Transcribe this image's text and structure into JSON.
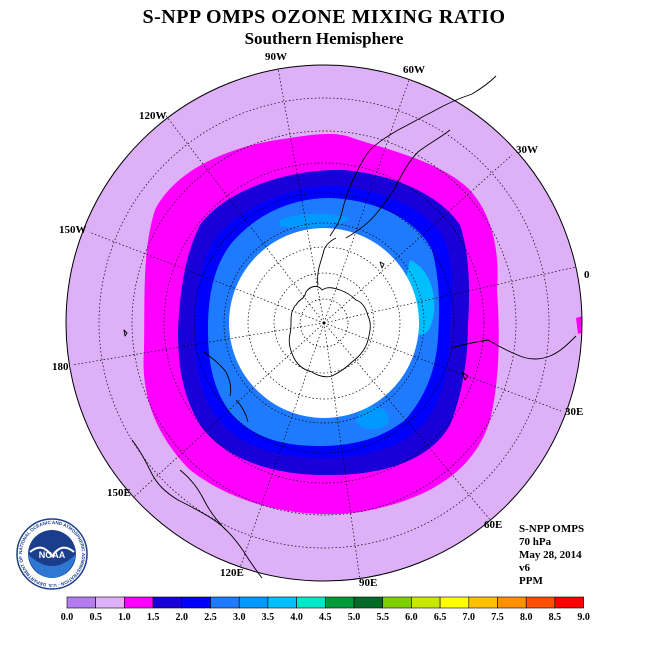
{
  "title": "S-NPP OMPS OZONE MIXING RATIO",
  "subtitle": "Southern Hemisphere",
  "longitude_labels": [
    "90W",
    "60W",
    "30W",
    "0",
    "30E",
    "60E",
    "90E",
    "120E",
    "150E",
    "180",
    "150W",
    "120W"
  ],
  "info": {
    "instrument": "S-NPP OMPS",
    "level": "70 hPa",
    "date": "May 28, 2014",
    "version": "v6",
    "units": "PPM"
  },
  "colorbar": {
    "ticks": [
      "0.0",
      "0.5",
      "1.0",
      "1.5",
      "2.0",
      "2.5",
      "3.0",
      "3.5",
      "4.0",
      "4.5",
      "5.0",
      "5.5",
      "6.0",
      "6.5",
      "7.0",
      "7.5",
      "8.0",
      "8.5",
      "9.0"
    ],
    "colors": [
      "#b57bf0",
      "#deb0f8",
      "#ff00ff",
      "#1a00d8",
      "#0000ff",
      "#1e7bff",
      "#0099ff",
      "#00bfff",
      "#00e8c8",
      "#009a3a",
      "#006a28",
      "#80d000",
      "#c8e800",
      "#ffff00",
      "#ffc000",
      "#ff9000",
      "#ff5000",
      "#ff0000",
      "#8b5a3a"
    ]
  },
  "logo": {
    "text": "NOAA",
    "ring_text": "NATIONAL OCEANIC AND ATMOSPHERIC ADMINISTRATION · U.S. DEPARTMENT OF COMMERCE"
  }
}
